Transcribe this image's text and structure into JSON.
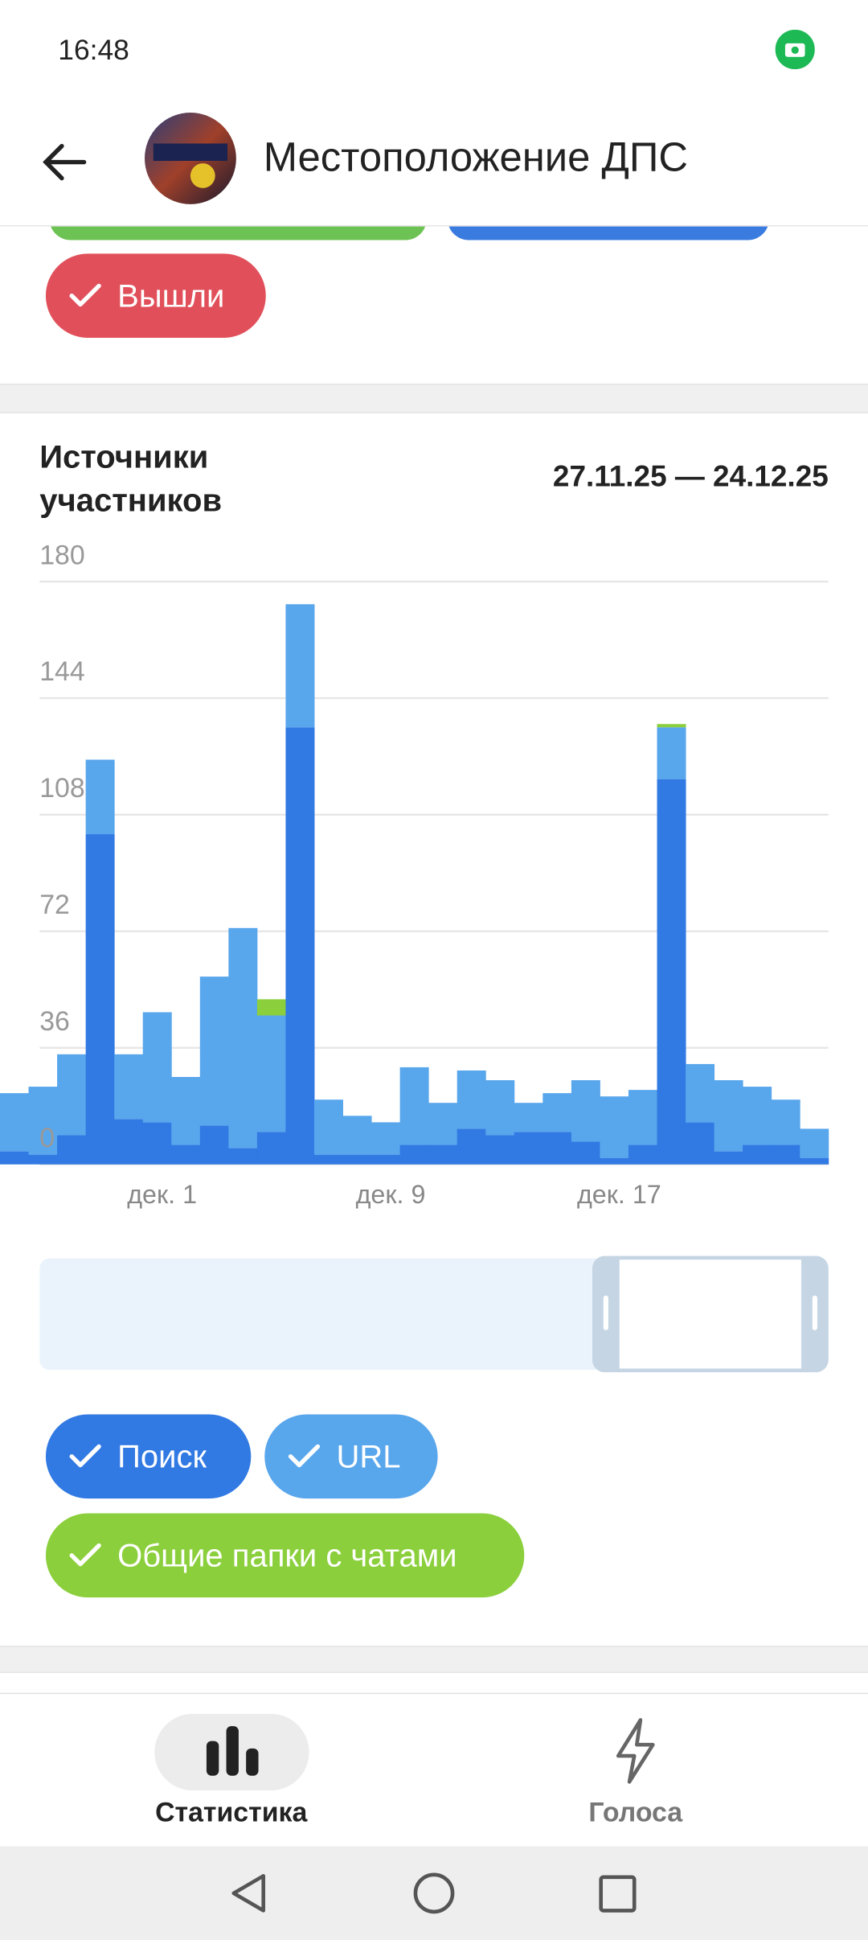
{
  "status_bar": {
    "time": "16:48"
  },
  "header": {
    "title": "Местоположение ДПС"
  },
  "top_chip": {
    "label": "Вышли"
  },
  "section": {
    "title": "Источники участников",
    "date_range": "27.11.25 — 24.12.25"
  },
  "chart_data": {
    "type": "stacked_bar",
    "categories": [
      null,
      null,
      null,
      null,
      null,
      "дек. 1",
      null,
      null,
      null,
      null,
      null,
      null,
      null,
      "дек. 9",
      null,
      null,
      null,
      null,
      null,
      null,
      null,
      "дек. 17",
      null,
      null,
      null,
      null,
      null,
      null,
      null
    ],
    "series": [
      {
        "name": "Поиск",
        "color": "#3179e3",
        "values": [
          4,
          3,
          9,
          102,
          14,
          13,
          6,
          12,
          5,
          10,
          135,
          3,
          3,
          3,
          6,
          6,
          11,
          9,
          10,
          10,
          7,
          2,
          6,
          119,
          13,
          4,
          6,
          6,
          2
        ]
      },
      {
        "name": "URL",
        "color": "#58a6ec",
        "values": [
          18,
          21,
          25,
          23,
          20,
          34,
          21,
          46,
          68,
          36,
          38,
          17,
          12,
          10,
          24,
          13,
          18,
          17,
          9,
          12,
          19,
          19,
          17,
          16,
          18,
          22,
          18,
          14,
          9
        ]
      },
      {
        "name": "Общие папки с чатами",
        "color": "#8bcf3c",
        "values": [
          0,
          0,
          0,
          0,
          0,
          0,
          0,
          0,
          0,
          5,
          0,
          0,
          0,
          0,
          0,
          0,
          0,
          0,
          0,
          0,
          0,
          0,
          0,
          1,
          0,
          0,
          0,
          0,
          0
        ]
      }
    ],
    "ylim": [
      0,
      180
    ],
    "yticks": [
      0,
      36,
      72,
      108,
      144,
      180
    ],
    "grid": true
  },
  "bottom_nav": {
    "items": [
      "Статистика",
      "Голоса"
    ]
  }
}
